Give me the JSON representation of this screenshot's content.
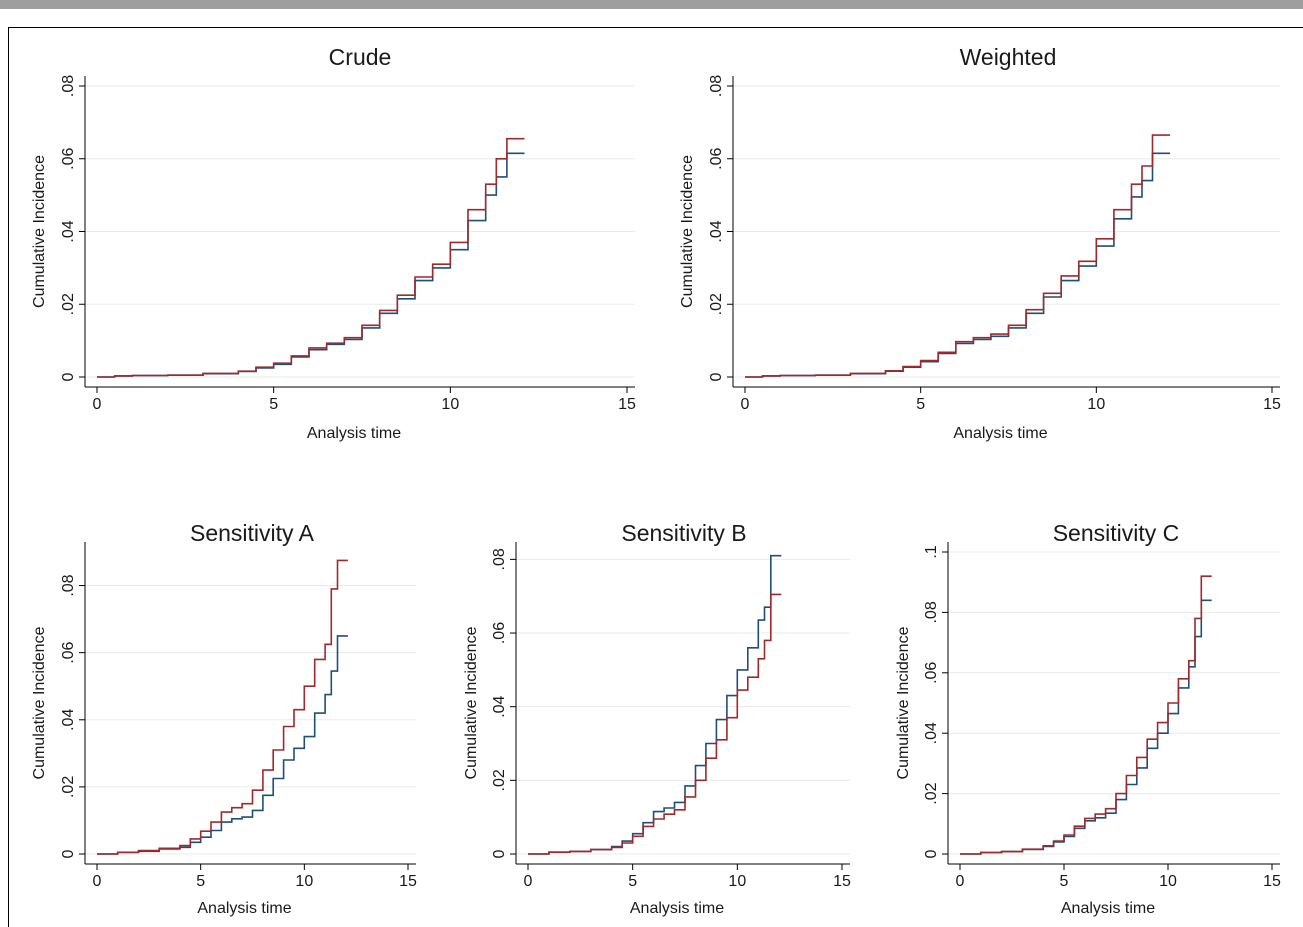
{
  "chart_data": [
    {
      "type": "line",
      "title": "Crude",
      "xlabel": "Analysis time",
      "ylabel": "Cumulative Incidence",
      "xticks": [
        "0",
        "5",
        "10",
        "15"
      ],
      "yticks": [
        "0",
        ".02",
        ".04",
        ".06",
        ".08"
      ],
      "xlim": [
        0,
        15
      ],
      "ylim": [
        0,
        0.08
      ],
      "grid": true,
      "series": [
        {
          "color": "#1f4e79",
          "x": [
            0,
            0.5,
            1,
            2,
            3,
            4,
            4.5,
            5,
            5.5,
            6,
            6.5,
            7,
            7.5,
            8,
            8.5,
            9,
            9.5,
            10,
            10.5,
            11,
            11.3,
            11.6,
            12.1
          ],
          "y": [
            0,
            0.0003,
            0.0004,
            0.0005,
            0.0009,
            0.0015,
            0.0025,
            0.0035,
            0.0055,
            0.0075,
            0.009,
            0.0103,
            0.0135,
            0.0175,
            0.0215,
            0.0265,
            0.03,
            0.035,
            0.043,
            0.05,
            0.055,
            0.0615,
            0.0615
          ]
        },
        {
          "color": "#9e2a2b",
          "x": [
            0,
            0.5,
            1,
            2,
            3,
            4,
            4.5,
            5,
            5.5,
            6,
            6.5,
            7,
            7.5,
            8,
            8.5,
            9,
            9.5,
            10,
            10.5,
            11,
            11.3,
            11.6,
            12.1
          ],
          "y": [
            0,
            0.0003,
            0.0004,
            0.0005,
            0.001,
            0.0016,
            0.0027,
            0.0038,
            0.0058,
            0.008,
            0.0093,
            0.0108,
            0.0142,
            0.0183,
            0.0225,
            0.0275,
            0.031,
            0.037,
            0.046,
            0.053,
            0.06,
            0.0655,
            0.0655
          ]
        }
      ]
    },
    {
      "type": "line",
      "title": "Weighted",
      "xlabel": "Analysis time",
      "ylabel": "Cumulative Incidence",
      "xticks": [
        "0",
        "5",
        "10",
        "15"
      ],
      "yticks": [
        "0",
        ".02",
        ".04",
        ".06",
        ".08"
      ],
      "xlim": [
        0,
        15
      ],
      "ylim": [
        0,
        0.08
      ],
      "grid": true,
      "series": [
        {
          "color": "#1f4e79",
          "x": [
            0,
            0.5,
            1,
            2,
            3,
            4,
            4.5,
            5,
            5.5,
            6,
            6.5,
            7,
            7.5,
            8,
            8.5,
            9,
            9.5,
            10,
            10.5,
            11,
            11.3,
            11.6,
            12.1
          ],
          "y": [
            0,
            0.0003,
            0.0004,
            0.0005,
            0.0009,
            0.0016,
            0.0027,
            0.0042,
            0.0065,
            0.0092,
            0.0103,
            0.0112,
            0.0135,
            0.0175,
            0.022,
            0.0265,
            0.0305,
            0.036,
            0.0435,
            0.0495,
            0.054,
            0.0615,
            0.0615
          ]
        },
        {
          "color": "#9e2a2b",
          "x": [
            0,
            0.5,
            1,
            2,
            3,
            4,
            4.5,
            5,
            5.5,
            6,
            6.5,
            7,
            7.5,
            8,
            8.5,
            9,
            9.5,
            10,
            10.5,
            11,
            11.3,
            11.6,
            12.1
          ],
          "y": [
            0,
            0.0003,
            0.0004,
            0.0005,
            0.001,
            0.0017,
            0.0029,
            0.0045,
            0.0068,
            0.0097,
            0.0108,
            0.0118,
            0.0142,
            0.0185,
            0.023,
            0.0278,
            0.0318,
            0.038,
            0.046,
            0.053,
            0.058,
            0.0665,
            0.0665
          ]
        }
      ]
    },
    {
      "type": "line",
      "title": "Sensitivity A",
      "xlabel": "Analysis time",
      "ylabel": "Cumulative Incidence",
      "xticks": [
        "0",
        "5",
        "10",
        "15"
      ],
      "yticks": [
        "0",
        ".02",
        ".04",
        ".06",
        ".08"
      ],
      "xlim": [
        0,
        15
      ],
      "ylim": [
        0,
        0.09
      ],
      "grid": true,
      "series": [
        {
          "color": "#1f4e79",
          "x": [
            0,
            1,
            2,
            3,
            4,
            4.5,
            5,
            5.5,
            6,
            6.5,
            7,
            7.5,
            8,
            8.5,
            9,
            9.5,
            10,
            10.5,
            11,
            11.3,
            11.6,
            12.1
          ],
          "y": [
            0,
            0.0005,
            0.0008,
            0.0015,
            0.002,
            0.0035,
            0.005,
            0.007,
            0.0095,
            0.0105,
            0.011,
            0.013,
            0.0175,
            0.0225,
            0.028,
            0.0315,
            0.035,
            0.042,
            0.0475,
            0.0545,
            0.065,
            0.065
          ]
        },
        {
          "color": "#9e2a2b",
          "x": [
            0,
            1,
            2,
            3,
            4,
            4.5,
            5,
            5.5,
            6,
            6.5,
            7,
            7.5,
            8,
            8.5,
            9,
            9.5,
            10,
            10.5,
            11,
            11.3,
            11.6,
            12.1
          ],
          "y": [
            0,
            0.0005,
            0.001,
            0.0017,
            0.0025,
            0.0045,
            0.0068,
            0.0095,
            0.0125,
            0.0138,
            0.015,
            0.019,
            0.025,
            0.031,
            0.038,
            0.043,
            0.05,
            0.058,
            0.0625,
            0.079,
            0.0875,
            0.0875
          ]
        }
      ]
    },
    {
      "type": "line",
      "title": "Sensitivity B",
      "xlabel": "Analysis time",
      "ylabel": "Cumulative Incidence",
      "xticks": [
        "0",
        "5",
        "10",
        "15"
      ],
      "yticks": [
        "0",
        ".02",
        ".04",
        ".06",
        ".08"
      ],
      "xlim": [
        0,
        15
      ],
      "ylim": [
        0,
        0.082
      ],
      "grid": true,
      "series": [
        {
          "color": "#1f4e79",
          "x": [
            0,
            1,
            2,
            3,
            4,
            4.5,
            5,
            5.5,
            6,
            6.5,
            7,
            7.5,
            8,
            8.5,
            9,
            9.5,
            10,
            10.5,
            11,
            11.3,
            11.6,
            12.1
          ],
          "y": [
            0,
            0.0005,
            0.0007,
            0.0012,
            0.002,
            0.0035,
            0.0055,
            0.0085,
            0.0115,
            0.0125,
            0.014,
            0.0185,
            0.024,
            0.03,
            0.0365,
            0.043,
            0.05,
            0.056,
            0.0635,
            0.067,
            0.081,
            0.081
          ]
        },
        {
          "color": "#9e2a2b",
          "x": [
            0,
            1,
            2,
            3,
            4,
            4.5,
            5,
            5.5,
            6,
            6.5,
            7,
            7.5,
            8,
            8.5,
            9,
            9.5,
            10,
            10.5,
            11,
            11.3,
            11.6,
            12.1
          ],
          "y": [
            0,
            0.0005,
            0.0007,
            0.0012,
            0.0018,
            0.003,
            0.0048,
            0.0075,
            0.0095,
            0.0108,
            0.012,
            0.0155,
            0.02,
            0.026,
            0.031,
            0.037,
            0.0445,
            0.048,
            0.053,
            0.058,
            0.0705,
            0.0705
          ]
        }
      ]
    },
    {
      "type": "line",
      "title": "Sensitivity C",
      "xlabel": "Analysis time",
      "ylabel": "Cumulative Incidence",
      "xticks": [
        "0",
        "5",
        "10",
        "15"
      ],
      "yticks": [
        "0",
        ".02",
        ".04",
        ".06",
        ".08",
        ".1"
      ],
      "xlim": [
        0,
        15
      ],
      "ylim": [
        0,
        0.1
      ],
      "grid": true,
      "series": [
        {
          "color": "#1f4e79",
          "x": [
            0,
            1,
            2,
            3,
            4,
            4.5,
            5,
            5.5,
            6,
            6.5,
            7,
            7.5,
            8,
            8.5,
            9,
            9.5,
            10,
            10.5,
            11,
            11.3,
            11.6,
            12.1
          ],
          "y": [
            0,
            0.0005,
            0.0008,
            0.0015,
            0.0025,
            0.004,
            0.0058,
            0.0085,
            0.011,
            0.012,
            0.0135,
            0.018,
            0.023,
            0.0285,
            0.035,
            0.04,
            0.0465,
            0.055,
            0.062,
            0.072,
            0.084,
            0.084
          ]
        },
        {
          "color": "#9e2a2b",
          "x": [
            0,
            1,
            2,
            3,
            4,
            4.5,
            5,
            5.5,
            6,
            6.5,
            7,
            7.5,
            8,
            8.5,
            9,
            9.5,
            10,
            10.5,
            11,
            11.3,
            11.6,
            12.1
          ],
          "y": [
            0,
            0.0005,
            0.0008,
            0.0016,
            0.0027,
            0.0043,
            0.0063,
            0.0092,
            0.0118,
            0.0132,
            0.015,
            0.02,
            0.026,
            0.032,
            0.038,
            0.0435,
            0.05,
            0.058,
            0.064,
            0.078,
            0.092,
            0.092
          ]
        }
      ]
    }
  ]
}
